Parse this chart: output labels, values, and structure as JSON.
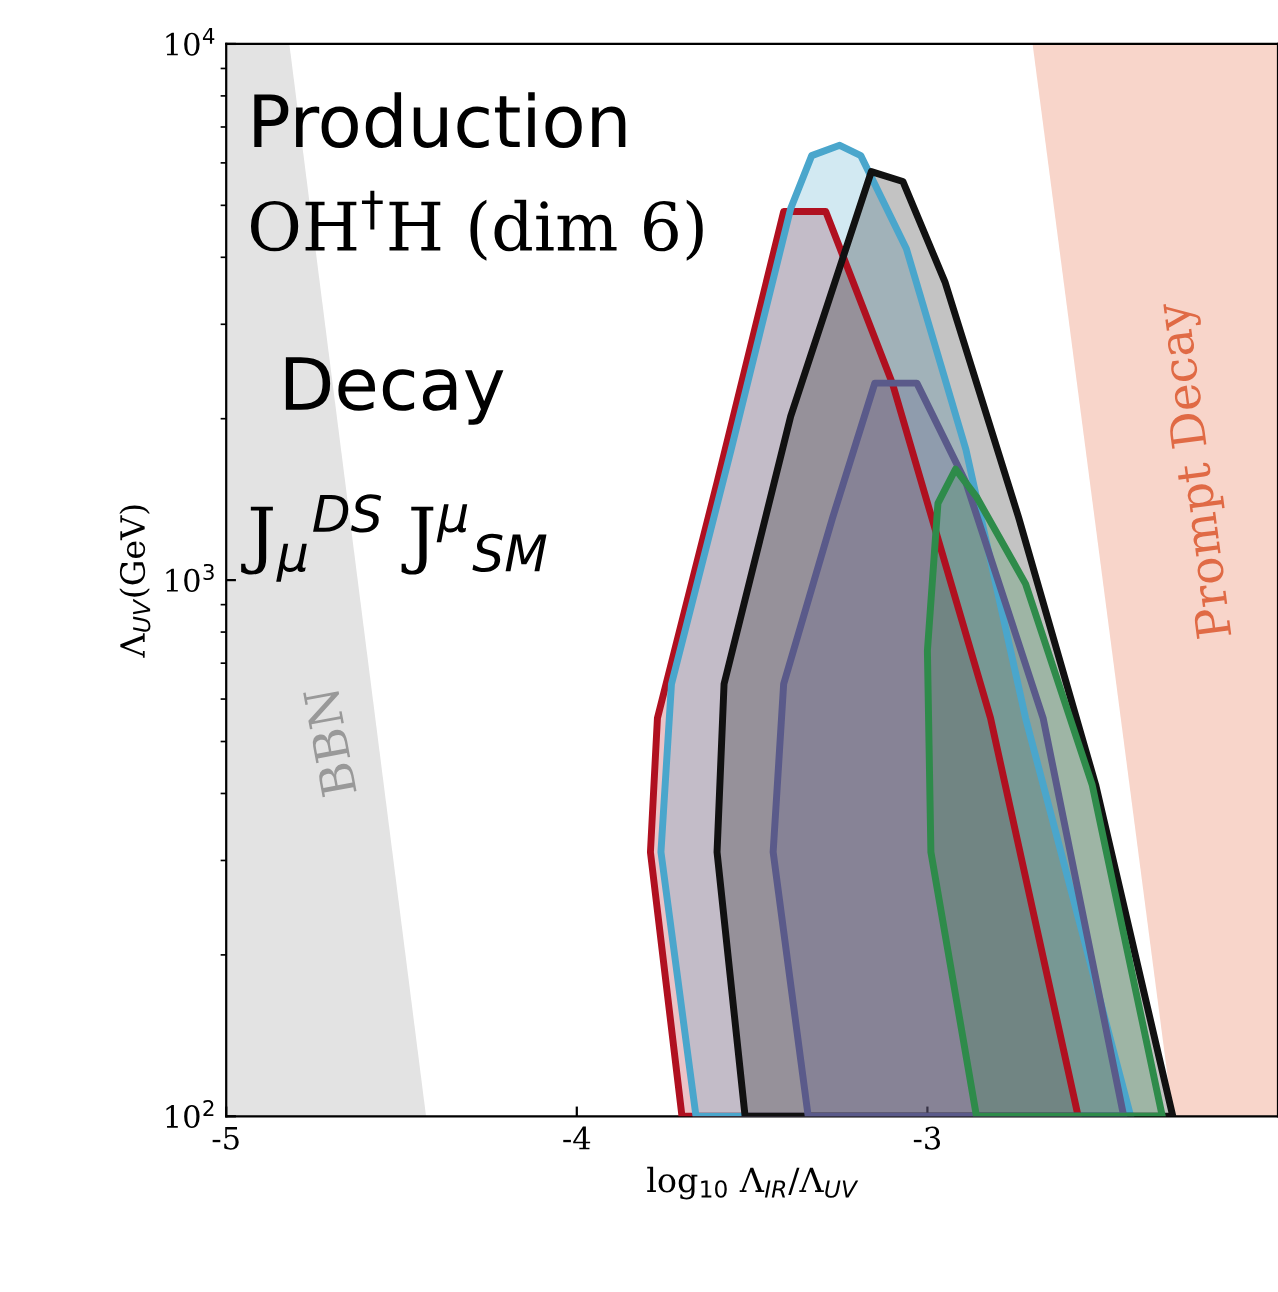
{
  "chart_data": {
    "type": "area",
    "xlabel": "log$_{10}$ Λ$_{IR}$/Λ$_{UV}$",
    "ylabel": "Λ$_{UV}$(GeV)",
    "log": "y",
    "xlim": [
      -5,
      -2
    ],
    "ylim": [
      100,
      10000
    ],
    "xticks": [
      -5,
      -4,
      -3
    ],
    "yticks": [
      {
        "value": 100,
        "label": "10$^{2}$"
      },
      {
        "value": 1000,
        "label": "10$^{3}$"
      },
      {
        "value": 10000,
        "label": "10$^{4}$"
      }
    ],
    "grid": false,
    "legend": false,
    "annotations": [
      "Production",
      "OH$^{†}$H (dim 6)",
      "Decay",
      "J$_{μ}$$^{DS}$ J$^{μ}$$_{SM}$"
    ],
    "series": [
      {
        "name": "BBN",
        "color": "#e3e3e3",
        "x": [
          -5,
          -4.82,
          -4.43,
          -5
        ],
        "values": [
          10000,
          10000,
          100,
          100
        ]
      },
      {
        "name": "Prompt Decay",
        "color": "#f8d5ca",
        "x": [
          -2.7,
          -2.0,
          -2.0,
          -2.3
        ],
        "values": [
          10000,
          10000,
          100,
          100
        ]
      },
      {
        "color": "#b01020",
        "x": [
          -3.7,
          -3.79,
          -3.77,
          -3.6,
          -3.41,
          -3.29,
          -3.1,
          -2.82,
          -2.57
        ],
        "values": [
          100,
          311,
          553,
          1520,
          4870,
          4870,
          2330,
          553,
          100
        ]
      },
      {
        "color": "#4aa6cc",
        "x": [
          -3.66,
          -3.76,
          -3.73,
          -3.56,
          -3.39,
          -3.33,
          -3.25,
          -3.19,
          -3.06,
          -2.89,
          -2.72,
          -2.42
        ],
        "values": [
          100,
          311,
          640,
          1750,
          4930,
          6190,
          6470,
          6190,
          4150,
          1750,
          553,
          100
        ]
      },
      {
        "color": "#111111",
        "x": [
          -3.52,
          -3.6,
          -3.58,
          -3.39,
          -3.16,
          -3.07,
          -2.95,
          -2.74,
          -2.52,
          -2.3
        ],
        "values": [
          100,
          311,
          640,
          2020,
          5780,
          5540,
          3600,
          1310,
          415,
          100
        ]
      },
      {
        "color": "#5a5a8a",
        "x": [
          -3.34,
          -3.44,
          -3.41,
          -3.27,
          -3.15,
          -3.03,
          -2.89,
          -2.67,
          -2.44
        ],
        "values": [
          100,
          311,
          640,
          1310,
          2330,
          2330,
          1520,
          553,
          100
        ]
      },
      {
        "color": "#2e8b4a",
        "x": [
          -2.86,
          -2.99,
          -3.0,
          -2.97,
          -2.92,
          -2.86,
          -2.72,
          -2.53,
          -2.33
        ],
        "values": [
          100,
          311,
          738,
          1390,
          1610,
          1430,
          984,
          415,
          100
        ]
      }
    ]
  }
}
